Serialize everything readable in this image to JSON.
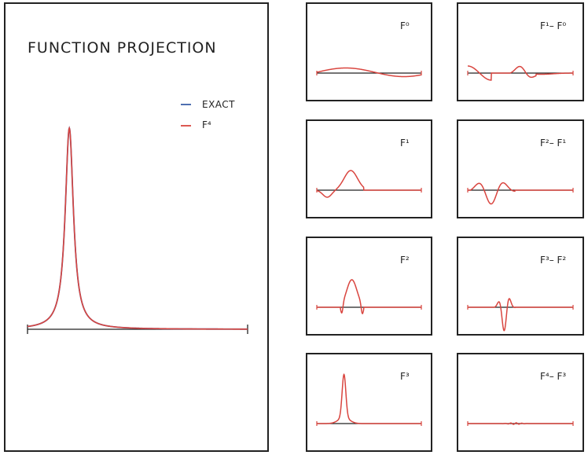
{
  "chart_data": [
    {
      "type": "line",
      "title": "FUNCTION PROJECTION",
      "legend_position": "top-right",
      "series": [
        {
          "name": "EXACT",
          "color": "#3b5fa8"
        },
        {
          "name": "F⁴",
          "color": "#d9453f"
        }
      ],
      "xlim": [
        -1,
        1
      ],
      "ylim": [
        0,
        1
      ],
      "axis": "baseline",
      "description_of_curve": "sharp peak near x = -0.7, height 1"
    },
    {
      "label": "F⁰"
    },
    {
      "label": "F¹– F⁰"
    },
    {
      "label": "F¹"
    },
    {
      "label": "F²– F¹"
    },
    {
      "label": "F²"
    },
    {
      "label": "F³– F²"
    },
    {
      "label": "F³"
    },
    {
      "label": "F⁴– F³"
    }
  ],
  "colors": {
    "exact": "#3b5fa8",
    "approx": "#d9453f",
    "axis": "#222222",
    "frame": "#222222"
  }
}
